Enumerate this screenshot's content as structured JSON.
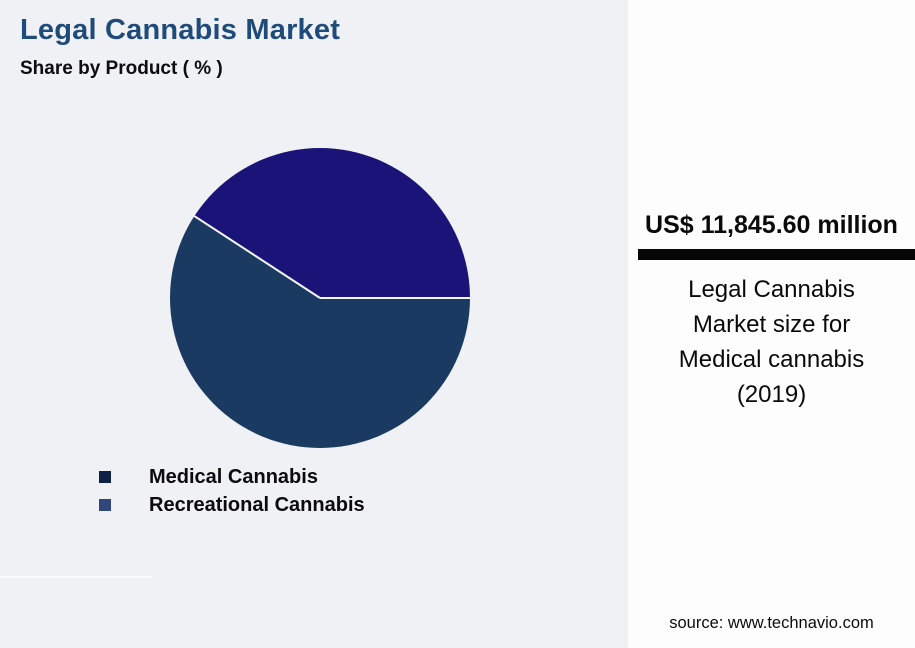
{
  "title": "Legal Cannabis Market",
  "subtitle": "Share by Product ( % )",
  "chart_data": {
    "type": "pie",
    "title": "Legal Cannabis Market",
    "subtitle": "Share by Product ( % )",
    "units": "%",
    "data_labels_shown": false,
    "values_estimated_from_angles": true,
    "slices": [
      {
        "label": "Medical Cannabis",
        "value": 59.2,
        "color": "#1b3a61"
      },
      {
        "label": "Recreational Cannabis",
        "value": 40.8,
        "color": "#1b1478"
      }
    ],
    "start_angle": "medical slice starts at 3 o'clock going clockwise through bottom",
    "slice_border_color": "#f5f7fa",
    "legend_position": "bottom-left"
  },
  "legend": {
    "items": [
      {
        "label": "Medical Cannabis",
        "swatch_color": "#0f2245"
      },
      {
        "label": "Recreational Cannabis",
        "swatch_color": "#2f477a"
      }
    ]
  },
  "panel": {
    "value": "US$ 11,845.60 million",
    "caption": "Legal Cannabis Market size for Medical cannabis (2019)",
    "caption_lines": [
      "Legal Cannabis",
      "Market size for",
      "Medical cannabis",
      "(2019)"
    ],
    "source": "source: www.technavio.com"
  },
  "colors": {
    "page_background": "#f0f1f5",
    "panel_background": "#fdfdfd",
    "title_accent": "#1f4b7a",
    "divider_bar": "#060606"
  }
}
